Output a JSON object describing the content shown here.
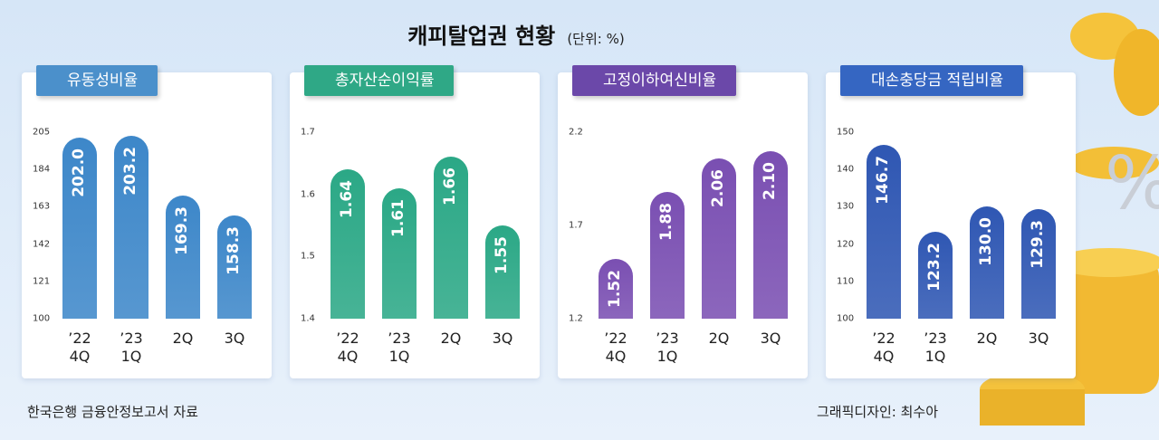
{
  "title": "캐피탈업권 현황",
  "unit": "(단위: %)",
  "source": "한국은행 금융안정보고서 자료",
  "credit": "그래픽디자인: 최수아",
  "chart_data": [
    {
      "type": "bar",
      "title": "유동성비율",
      "color": "#3d87c9",
      "tag_color": "#4b90cb",
      "categories": [
        "’22\n4Q",
        "’23\n1Q",
        "2Q",
        "3Q"
      ],
      "values": [
        202.0,
        203.2,
        169.3,
        158.3
      ],
      "value_labels": [
        "202.0",
        "203.2",
        "169.3",
        "158.3"
      ],
      "ylim": [
        100,
        205
      ],
      "yticks": [
        100,
        121,
        142,
        163,
        184,
        205
      ]
    },
    {
      "type": "bar",
      "title": "총자산순이익률",
      "color": "#2ba886",
      "tag_color": "#2fa886",
      "categories": [
        "’22\n4Q",
        "’23\n1Q",
        "2Q",
        "3Q"
      ],
      "values": [
        1.64,
        1.61,
        1.66,
        1.55
      ],
      "value_labels": [
        "1.64",
        "1.61",
        "1.66",
        "1.55"
      ],
      "ylim": [
        1.4,
        1.7
      ],
      "yticks": [
        1.4,
        1.5,
        1.6,
        1.7
      ]
    },
    {
      "type": "bar",
      "title": "고정이하여신비율",
      "color": "#7a4fb2",
      "tag_color": "#6b48a9",
      "categories": [
        "’22\n4Q",
        "’23\n1Q",
        "2Q",
        "3Q"
      ],
      "values": [
        1.52,
        1.88,
        2.06,
        2.1
      ],
      "value_labels": [
        "1.52",
        "1.88",
        "2.06",
        "2.10"
      ],
      "ylim": [
        1.2,
        2.2
      ],
      "yticks": [
        1.2,
        1.7,
        2.2
      ]
    },
    {
      "type": "bar",
      "title": "대손충당금 적립비율",
      "color": "#2f57b3",
      "tag_color": "#3566c2",
      "categories": [
        "’22\n4Q",
        "’23\n1Q",
        "2Q",
        "3Q"
      ],
      "values": [
        146.7,
        123.2,
        130.0,
        129.3
      ],
      "value_labels": [
        "146.7",
        "123.2",
        "130.0",
        "129.3"
      ],
      "ylim": [
        100,
        150
      ],
      "yticks": [
        100,
        110,
        120,
        130,
        140,
        150
      ]
    }
  ]
}
